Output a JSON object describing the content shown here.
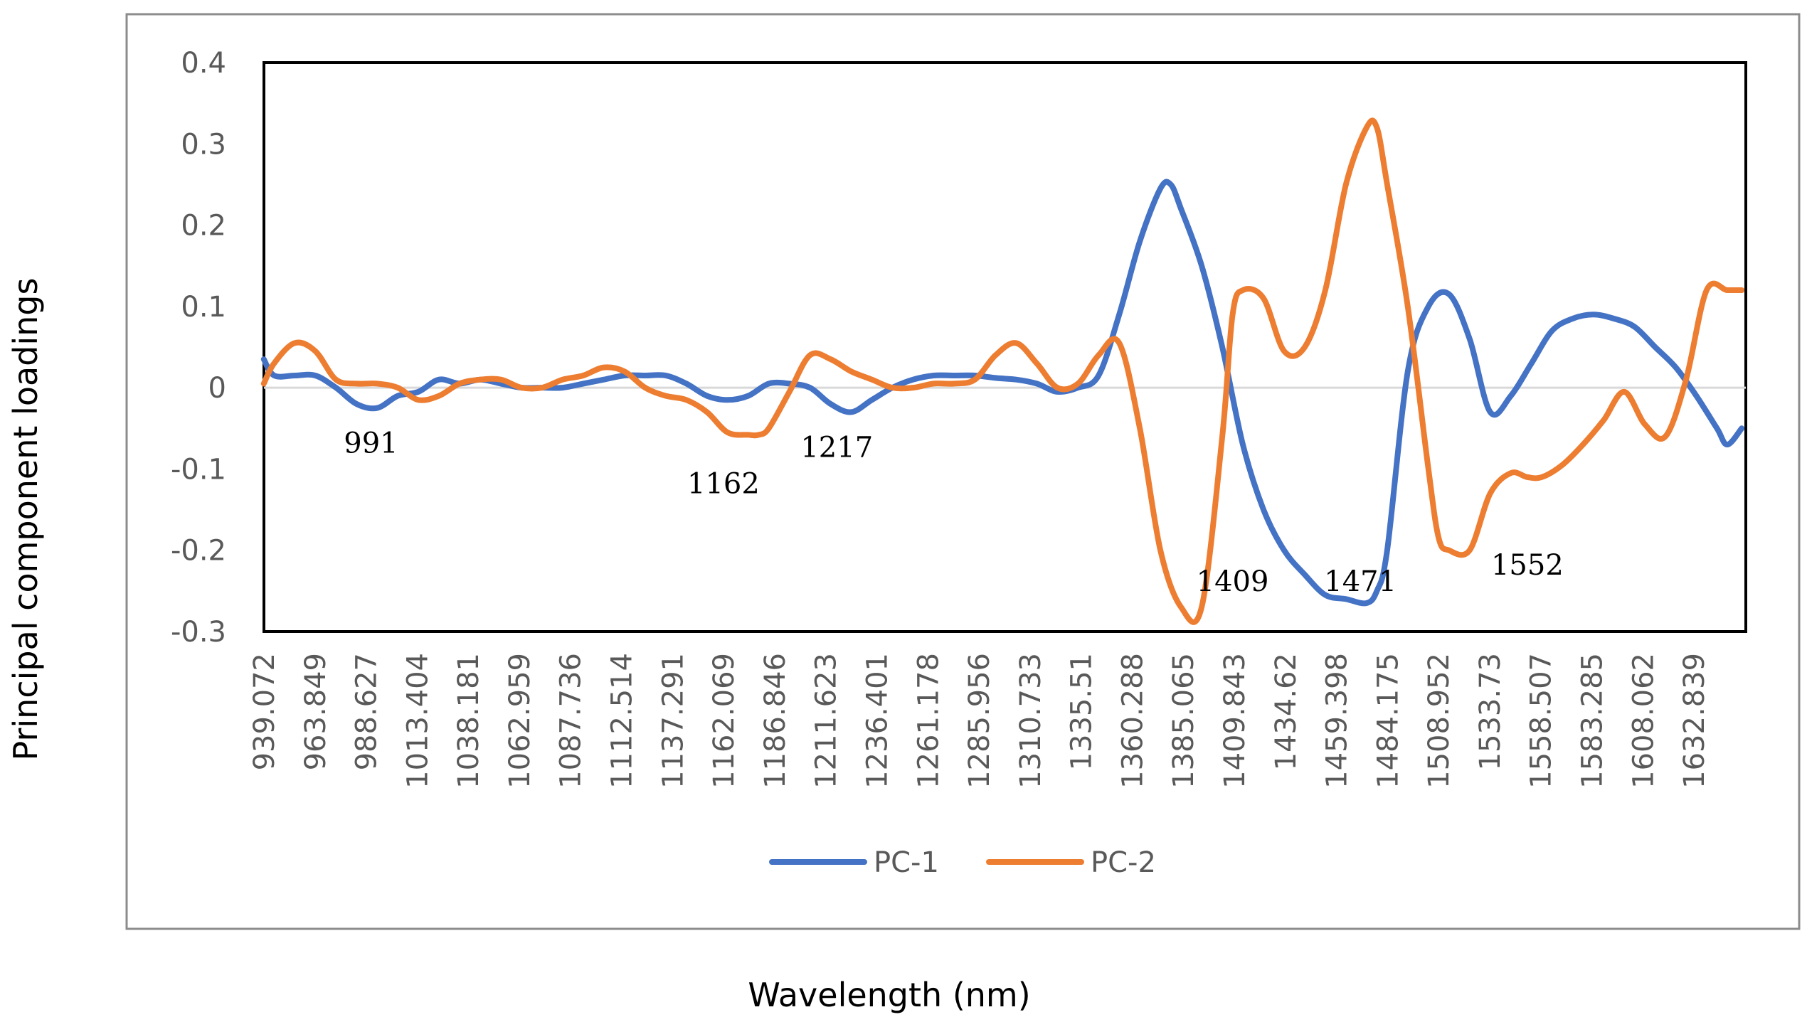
{
  "chart_data": {
    "type": "line",
    "title": "",
    "xlabel": "Wavelength (nm)",
    "ylabel": "Principal component loadings",
    "ylim": [
      -0.3,
      0.4
    ],
    "yticks": [
      0.4,
      0.3,
      0.2,
      0.1,
      0,
      -0.1,
      -0.2,
      -0.3
    ],
    "ytick_labels": [
      "0.4",
      "0.3",
      "0.2",
      "0.1",
      "0",
      "-0.1",
      "-0.2",
      "-0.3"
    ],
    "xlim": [
      939.072,
      1658
    ],
    "xtick_labels": [
      "939.072",
      "963.849",
      "988.627",
      "1013.404",
      "1038.181",
      "1062.959",
      "1087.736",
      "1112.514",
      "1137.291",
      "1162.069",
      "1186.846",
      "1211.623",
      "1236.401",
      "1261.178",
      "1285.956",
      "1310.733",
      "1335.51",
      "1360.288",
      "1385.065",
      "1409.843",
      "1434.62",
      "1459.398",
      "1484.175",
      "1508.952",
      "1533.73",
      "1558.507",
      "1583.285",
      "1608.062",
      "1632.839"
    ],
    "grid": false,
    "legend_position": "bottom",
    "series": [
      {
        "name": "PC-1",
        "color": "#4472C4",
        "x": [
          939,
          944,
          954,
          964,
          974,
          984,
          994,
          1004,
          1014,
          1024,
          1034,
          1044,
          1054,
          1064,
          1074,
          1084,
          1094,
          1104,
          1114,
          1124,
          1134,
          1144,
          1154,
          1164,
          1174,
          1184,
          1194,
          1204,
          1214,
          1224,
          1234,
          1244,
          1254,
          1264,
          1274,
          1284,
          1294,
          1304,
          1314,
          1324,
          1334,
          1344,
          1354,
          1364,
          1374,
          1379,
          1384,
          1394,
          1404,
          1414,
          1424,
          1434,
          1444,
          1454,
          1464,
          1474,
          1479,
          1484,
          1494,
          1504,
          1514,
          1524,
          1534,
          1544,
          1554,
          1564,
          1574,
          1584,
          1594,
          1604,
          1614,
          1624,
          1634,
          1644,
          1649,
          1656
        ],
        "y": [
          0.035,
          0.015,
          0.015,
          0.015,
          0.0,
          -0.02,
          -0.025,
          -0.01,
          -0.005,
          0.01,
          0.005,
          0.01,
          0.005,
          0.0,
          0.0,
          0.0,
          0.005,
          0.01,
          0.015,
          0.015,
          0.015,
          0.005,
          -0.01,
          -0.015,
          -0.01,
          0.005,
          0.005,
          0.0,
          -0.02,
          -0.03,
          -0.015,
          0.0,
          0.01,
          0.015,
          0.015,
          0.015,
          0.012,
          0.01,
          0.005,
          -0.005,
          0.0,
          0.015,
          0.09,
          0.18,
          0.245,
          0.25,
          0.22,
          0.15,
          0.05,
          -0.07,
          -0.15,
          -0.2,
          -0.23,
          -0.255,
          -0.26,
          -0.265,
          -0.25,
          -0.2,
          0.02,
          0.1,
          0.115,
          0.06,
          -0.03,
          -0.01,
          0.03,
          0.07,
          0.085,
          0.09,
          0.085,
          0.075,
          0.05,
          0.025,
          -0.01,
          -0.05,
          -0.07,
          -0.05
        ]
      },
      {
        "name": "PC-2",
        "color": "#ED7D31",
        "x": [
          939,
          944,
          954,
          964,
          974,
          984,
          994,
          1004,
          1014,
          1024,
          1034,
          1044,
          1054,
          1064,
          1074,
          1084,
          1094,
          1104,
          1114,
          1124,
          1134,
          1144,
          1154,
          1164,
          1174,
          1179,
          1184,
          1194,
          1204,
          1214,
          1224,
          1234,
          1244,
          1254,
          1264,
          1274,
          1284,
          1294,
          1304,
          1314,
          1324,
          1334,
          1344,
          1354,
          1364,
          1374,
          1384,
          1394,
          1404,
          1409,
          1414,
          1424,
          1434,
          1444,
          1454,
          1464,
          1474,
          1479,
          1484,
          1494,
          1504,
          1509,
          1514,
          1524,
          1534,
          1544,
          1552,
          1559,
          1569,
          1579,
          1589,
          1599,
          1609,
          1619,
          1629,
          1639,
          1649,
          1656
        ],
        "y": [
          0.005,
          0.03,
          0.055,
          0.045,
          0.01,
          0.005,
          0.005,
          0.0,
          -0.015,
          -0.01,
          0.005,
          0.01,
          0.01,
          0.0,
          0.0,
          0.01,
          0.015,
          0.025,
          0.02,
          0.0,
          -0.01,
          -0.015,
          -0.03,
          -0.055,
          -0.058,
          -0.058,
          -0.05,
          -0.005,
          0.04,
          0.035,
          0.02,
          0.01,
          0.0,
          0.0,
          0.005,
          0.005,
          0.01,
          0.04,
          0.055,
          0.03,
          0.0,
          0.005,
          0.04,
          0.055,
          -0.05,
          -0.2,
          -0.27,
          -0.27,
          -0.06,
          0.09,
          0.12,
          0.11,
          0.045,
          0.05,
          0.12,
          0.25,
          0.32,
          0.32,
          0.25,
          0.1,
          -0.1,
          -0.185,
          -0.2,
          -0.2,
          -0.13,
          -0.105,
          -0.11,
          -0.11,
          -0.095,
          -0.07,
          -0.04,
          -0.005,
          -0.045,
          -0.06,
          0.01,
          0.12,
          0.12,
          0.12
        ]
      }
    ],
    "annotations": [
      {
        "text": "991",
        "x": 991,
        "y": -0.08
      },
      {
        "text": "1162",
        "x": 1162,
        "y": -0.13
      },
      {
        "text": "1217",
        "x": 1217,
        "y": -0.085
      },
      {
        "text": "1409",
        "x": 1409,
        "y": -0.25
      },
      {
        "text": "1471",
        "x": 1471,
        "y": -0.25
      },
      {
        "text": "1552",
        "x": 1552,
        "y": -0.23
      }
    ]
  }
}
